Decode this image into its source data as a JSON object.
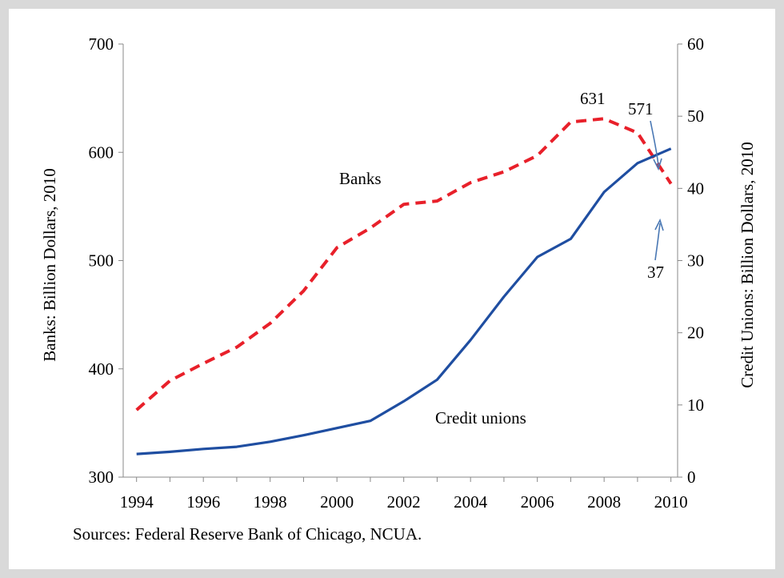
{
  "chart_data": {
    "type": "line",
    "x": [
      1994,
      1995,
      1996,
      1997,
      1998,
      1999,
      2000,
      2001,
      2002,
      2003,
      2004,
      2005,
      2006,
      2007,
      2008,
      2009,
      2010
    ],
    "x_ticks": [
      "1994",
      "1996",
      "1998",
      "2000",
      "2002",
      "2004",
      "2006",
      "2008",
      "2010"
    ],
    "left_axis": {
      "label": "Banks: Billion Dollars, 2010",
      "ylim": [
        300,
        700
      ],
      "ticks": [
        "300",
        "400",
        "500",
        "600",
        "700"
      ]
    },
    "right_axis": {
      "label": "Credit Unions: Billion Dollars, 2010",
      "ylim": [
        0,
        60
      ],
      "ticks": [
        "0",
        "10",
        "20",
        "30",
        "40",
        "50",
        "60"
      ]
    },
    "series": [
      {
        "name": "Banks",
        "axis": "left",
        "style": "dashed",
        "color": "#e8202a",
        "values": [
          362,
          389,
          405,
          420,
          442,
          472,
          512,
          530,
          552,
          555,
          572,
          582,
          597,
          628,
          631,
          618,
          571
        ]
      },
      {
        "name": "Credit unions",
        "axis": "right",
        "style": "solid",
        "color": "#1f4ea1",
        "values": [
          3.2,
          3.5,
          3.9,
          4.2,
          4.9,
          5.8,
          6.8,
          7.8,
          10.5,
          13.5,
          19,
          25,
          30.5,
          33,
          39.5,
          43.5,
          45.5
        ]
      }
    ],
    "annotations": [
      "631",
      "571",
      "37"
    ],
    "grid": false
  },
  "source_note": "Sources: Federal Reserve Bank of Chicago, NCUA."
}
